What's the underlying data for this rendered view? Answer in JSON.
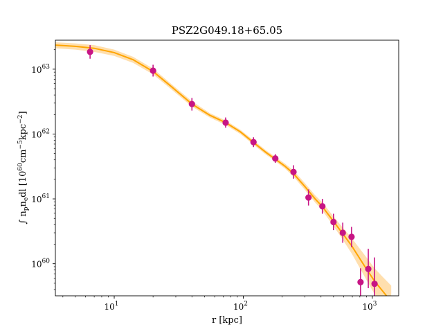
{
  "chart_data": {
    "type": "scatter",
    "title": "PSZ2G049.18+65.05",
    "xlabel": "r [kpc]",
    "ylabel": "∫ n_p n_e dl [10^60 cm^-5 kpc^-2]",
    "xscale": "log",
    "yscale": "log",
    "xlim": [
      3.5,
      1600
    ],
    "ylim": [
      3.2e+59,
      2.8e+63
    ],
    "grid": false,
    "x_ticks": [
      {
        "value": 10,
        "base": "10",
        "exp": "1"
      },
      {
        "value": 100,
        "base": "10",
        "exp": "2"
      },
      {
        "value": 1000,
        "base": "10",
        "exp": "3"
      }
    ],
    "y_ticks": [
      {
        "value": 1e+60,
        "base": "10",
        "exp": "60"
      },
      {
        "value": 1e+61,
        "base": "10",
        "exp": "61"
      },
      {
        "value": 1e+62,
        "base": "10",
        "exp": "62"
      },
      {
        "value": 1e+63,
        "base": "10",
        "exp": "63"
      }
    ],
    "data_points": {
      "color": "#c71585",
      "points": [
        {
          "x": 6.5,
          "y": 1.85e+63,
          "ylo": 1.45e+63,
          "yhi": 2.35e+63
        },
        {
          "x": 20,
          "y": 9.5e+62,
          "ylo": 7.7e+62,
          "yhi": 1.17e+63
        },
        {
          "x": 40,
          "y": 2.9e+62,
          "ylo": 2.3e+62,
          "yhi": 3.6e+62
        },
        {
          "x": 73,
          "y": 1.5e+62,
          "ylo": 1.25e+62,
          "yhi": 1.8e+62
        },
        {
          "x": 120,
          "y": 7.5e+61,
          "ylo": 6.3e+61,
          "yhi": 8.9e+61
        },
        {
          "x": 177,
          "y": 4.2e+61,
          "ylo": 3.6e+61,
          "yhi": 4.9e+61
        },
        {
          "x": 245,
          "y": 2.6e+61,
          "ylo": 2.05e+61,
          "yhi": 3.3e+61
        },
        {
          "x": 320,
          "y": 1.05e+61,
          "ylo": 7.9e+60,
          "yhi": 1.4e+61
        },
        {
          "x": 410,
          "y": 7.7e+60,
          "ylo": 5.9e+60,
          "yhi": 1e+61
        },
        {
          "x": 500,
          "y": 4.4e+60,
          "ylo": 3.3e+60,
          "yhi": 5.9e+60
        },
        {
          "x": 590,
          "y": 3e+60,
          "ylo": 2.1e+60,
          "yhi": 4.3e+60
        },
        {
          "x": 690,
          "y": 2.6e+60,
          "ylo": 1.8e+60,
          "yhi": 3.7e+60
        },
        {
          "x": 810,
          "y": 5.2e+59,
          "ylo": 3.2e+59,
          "yhi": 8.5e+59
        },
        {
          "x": 930,
          "y": 8.3e+59,
          "ylo": 4.2e+59,
          "yhi": 1.7e+60
        },
        {
          "x": 1040,
          "y": 4.9e+59,
          "ylo": 3.2e+59,
          "yhi": 1.25e+60
        }
      ]
    },
    "model_curve": {
      "line_color": "#ffa500",
      "band_color": "#ffd9a0",
      "points": [
        {
          "x": 3.5,
          "y": 2.35e+63,
          "ylo": 2.1e+63,
          "yhi": 2.6e+63
        },
        {
          "x": 5,
          "y": 2.25e+63,
          "ylo": 2e+63,
          "yhi": 2.5e+63
        },
        {
          "x": 7,
          "y": 2.1e+63,
          "ylo": 1.85e+63,
          "yhi": 2.35e+63
        },
        {
          "x": 10,
          "y": 1.8e+63,
          "ylo": 1.6e+63,
          "yhi": 2e+63
        },
        {
          "x": 14,
          "y": 1.4e+63,
          "ylo": 1.25e+63,
          "yhi": 1.55e+63
        },
        {
          "x": 20,
          "y": 9.2e+62,
          "ylo": 8.3e+62,
          "yhi": 1.02e+63
        },
        {
          "x": 28,
          "y": 5.3e+62,
          "ylo": 4.8e+62,
          "yhi": 5.8e+62
        },
        {
          "x": 40,
          "y": 2.9e+62,
          "ylo": 2.65e+62,
          "yhi": 3.2e+62
        },
        {
          "x": 55,
          "y": 1.95e+62,
          "ylo": 1.8e+62,
          "yhi": 2.1e+62
        },
        {
          "x": 73,
          "y": 1.5e+62,
          "ylo": 1.38e+62,
          "yhi": 1.62e+62
        },
        {
          "x": 95,
          "y": 1.08e+62,
          "ylo": 1e+62,
          "yhi": 1.16e+62
        },
        {
          "x": 120,
          "y": 7.4e+61,
          "ylo": 6.85e+61,
          "yhi": 8e+61
        },
        {
          "x": 150,
          "y": 5.2e+61,
          "ylo": 4.8e+61,
          "yhi": 5.6e+61
        },
        {
          "x": 177,
          "y": 4.1e+61,
          "ylo": 3.8e+61,
          "yhi": 4.45e+61
        },
        {
          "x": 210,
          "y": 3.2e+61,
          "ylo": 2.95e+61,
          "yhi": 3.5e+61
        },
        {
          "x": 245,
          "y": 2.45e+61,
          "ylo": 2.2e+61,
          "yhi": 2.75e+61
        },
        {
          "x": 300,
          "y": 1.55e+61,
          "ylo": 1.38e+61,
          "yhi": 1.75e+61
        },
        {
          "x": 360,
          "y": 1e+61,
          "ylo": 8.8e+60,
          "yhi": 1.14e+61
        },
        {
          "x": 410,
          "y": 7.6e+60,
          "ylo": 6.6e+60,
          "yhi": 8.8e+60
        },
        {
          "x": 500,
          "y": 4.5e+60,
          "ylo": 3.8e+60,
          "yhi": 5.35e+60
        },
        {
          "x": 590,
          "y": 2.9e+60,
          "ylo": 2.35e+60,
          "yhi": 3.6e+60
        },
        {
          "x": 690,
          "y": 1.9e+60,
          "ylo": 1.45e+60,
          "yhi": 2.5e+60
        },
        {
          "x": 810,
          "y": 1.15e+60,
          "ylo": 8.2e+59,
          "yhi": 1.65e+60
        },
        {
          "x": 930,
          "y": 7.5e+59,
          "ylo": 5e+59,
          "yhi": 1.15e+60
        },
        {
          "x": 1040,
          "y": 5.4e+59,
          "ylo": 3.4e+59,
          "yhi": 8.5e+59
        },
        {
          "x": 1200,
          "y": 3.8e+59,
          "ylo": 2.2e+59,
          "yhi": 6.3e+59
        },
        {
          "x": 1400,
          "y": 2.6e+59,
          "ylo": 1.4e+59,
          "yhi": 4.6e+59
        }
      ]
    }
  }
}
